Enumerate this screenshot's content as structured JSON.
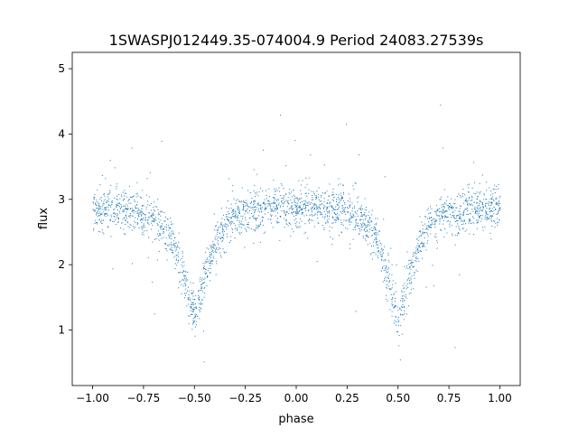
{
  "chart_data": {
    "type": "scatter",
    "title": "1SWASPJ012449.35-074004.9 Period 24083.27539s",
    "xlabel": "phase",
    "ylabel": "flux",
    "xlim": [
      -1.1,
      1.1
    ],
    "ylim": [
      0.15,
      5.25
    ],
    "x_ticks": [
      -1.0,
      -0.75,
      -0.5,
      -0.25,
      0.0,
      0.25,
      0.5,
      0.75,
      1.0
    ],
    "x_tick_labels": [
      "−1.00",
      "−0.75",
      "−0.50",
      "−0.25",
      "0.00",
      "0.25",
      "0.50",
      "0.75",
      "1.00"
    ],
    "y_ticks": [
      1,
      2,
      3,
      4,
      5
    ],
    "y_tick_labels": [
      "1",
      "2",
      "3",
      "4",
      "5"
    ],
    "grid": false,
    "legend": "none",
    "point_color": "#1f77b4",
    "series": [
      {
        "x": [
          -1.0,
          -0.9,
          -0.8,
          -0.7,
          -0.65,
          -0.6,
          -0.55,
          -0.5,
          -0.45,
          -0.4,
          -0.35,
          -0.3,
          -0.2,
          -0.1,
          0.0,
          0.1,
          0.2,
          0.3,
          0.35,
          0.4,
          0.45,
          0.5,
          0.55,
          0.6,
          0.65,
          0.7,
          0.8,
          0.9,
          1.0
        ],
        "y": [
          2.85,
          2.85,
          2.8,
          2.7,
          2.55,
          2.3,
          1.8,
          1.2,
          1.8,
          2.3,
          2.6,
          2.75,
          2.85,
          2.9,
          2.9,
          2.88,
          2.85,
          2.75,
          2.6,
          2.3,
          1.8,
          1.2,
          1.8,
          2.3,
          2.6,
          2.75,
          2.82,
          2.85,
          2.85
        ]
      }
    ]
  }
}
